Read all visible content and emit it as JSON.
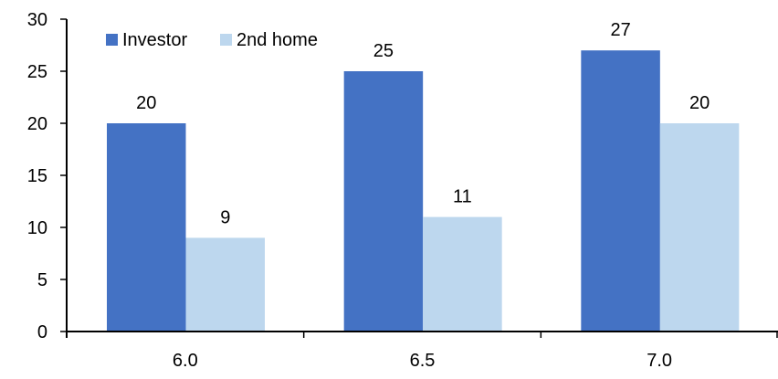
{
  "chart_data": {
    "type": "bar",
    "categories": [
      "6.0",
      "6.5",
      "7.0"
    ],
    "series": [
      {
        "name": "Investor",
        "values": [
          20,
          25,
          27
        ],
        "color": "#4472C4"
      },
      {
        "name": "2nd home",
        "values": [
          9,
          11,
          20
        ],
        "color": "#BDD7EE"
      }
    ],
    "title": "",
    "xlabel": "",
    "ylabel": "",
    "ylim": [
      0,
      30
    ],
    "yticks": [
      0,
      5,
      10,
      15,
      20,
      25,
      30
    ],
    "grid": false,
    "legend": "top-left",
    "data_labels": true
  }
}
